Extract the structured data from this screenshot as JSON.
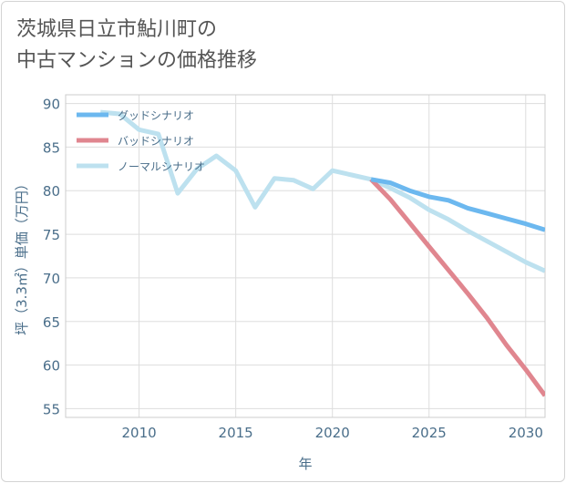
{
  "title_lines": [
    "茨城県日立市鮎川町の",
    "中古マンションの価格推移"
  ],
  "chart_data": {
    "type": "line",
    "title": "茨城県日立市鮎川町の中古マンションの価格推移",
    "xlabel": "年",
    "ylabel": "坪（3.3㎡）単価（万円）",
    "xlim": [
      2006.2,
      2031
    ],
    "ylim": [
      54,
      91
    ],
    "xticks": [
      2010,
      2015,
      2020,
      2025,
      2030
    ],
    "yticks": [
      55,
      60,
      65,
      70,
      75,
      80,
      85,
      90
    ],
    "grid": true,
    "legend_position": "top-left",
    "series": [
      {
        "name": "グッドシナリオ",
        "color": "#6cb8ef",
        "x": [
          2022,
          2023,
          2024,
          2025,
          2026,
          2027,
          2028,
          2029,
          2030,
          2031
        ],
        "y": [
          81.3,
          80.9,
          80.0,
          79.3,
          78.9,
          78.0,
          77.4,
          76.8,
          76.2,
          75.5
        ]
      },
      {
        "name": "バッドシナリオ",
        "color": "#e0868f",
        "x": [
          2022,
          2023,
          2024,
          2025,
          2026,
          2027,
          2028,
          2029,
          2030,
          2031
        ],
        "y": [
          81.3,
          79.0,
          76.3,
          73.6,
          70.9,
          68.2,
          65.4,
          62.3,
          59.5,
          56.5
        ]
      },
      {
        "name": "ノーマルシナリオ",
        "color": "#bde1ef",
        "x": [
          2008,
          2009,
          2010,
          2011,
          2012,
          2013,
          2014,
          2015,
          2016,
          2017,
          2018,
          2019,
          2020,
          2021,
          2022,
          2023,
          2024,
          2025,
          2026,
          2027,
          2028,
          2029,
          2030,
          2031
        ],
        "y": [
          89.0,
          88.8,
          87.0,
          86.5,
          79.7,
          82.5,
          84.0,
          82.3,
          78.1,
          81.4,
          81.2,
          80.2,
          82.3,
          81.8,
          81.3,
          80.3,
          79.2,
          77.8,
          76.7,
          75.4,
          74.2,
          73.0,
          71.8,
          70.8
        ]
      }
    ]
  }
}
